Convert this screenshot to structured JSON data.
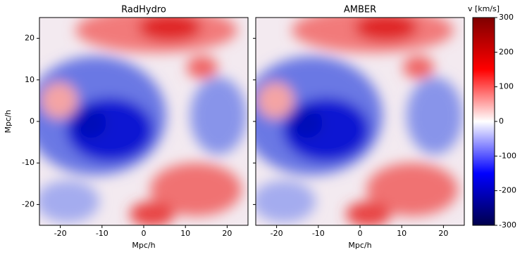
{
  "chart_data": [
    {
      "type": "heatmap",
      "title": "RadHydro",
      "xlabel": "Mpc/h",
      "ylabel": "Mpc/h",
      "xlim": [
        -25,
        25
      ],
      "ylim": [
        -25,
        25
      ],
      "xticks": [
        -20,
        -10,
        0,
        10,
        20
      ],
      "yticks": [
        -20,
        -10,
        0,
        10,
        20
      ],
      "show_ytick_labels": true
    },
    {
      "type": "heatmap",
      "title": "AMBER",
      "xlabel": "Mpc/h",
      "xlim": [
        -25,
        25
      ],
      "ylim": [
        -25,
        25
      ],
      "xticks": [
        -20,
        -10,
        0,
        10,
        20
      ],
      "yticks": [
        -20,
        -10,
        0,
        10,
        20
      ],
      "show_ytick_labels": false,
      "colorbar": {
        "label": "v [km/s]",
        "colormap": "seismic",
        "lim": [
          -300,
          300
        ],
        "ticks": [
          -300,
          -200,
          -100,
          0,
          100,
          200,
          300
        ]
      }
    }
  ]
}
